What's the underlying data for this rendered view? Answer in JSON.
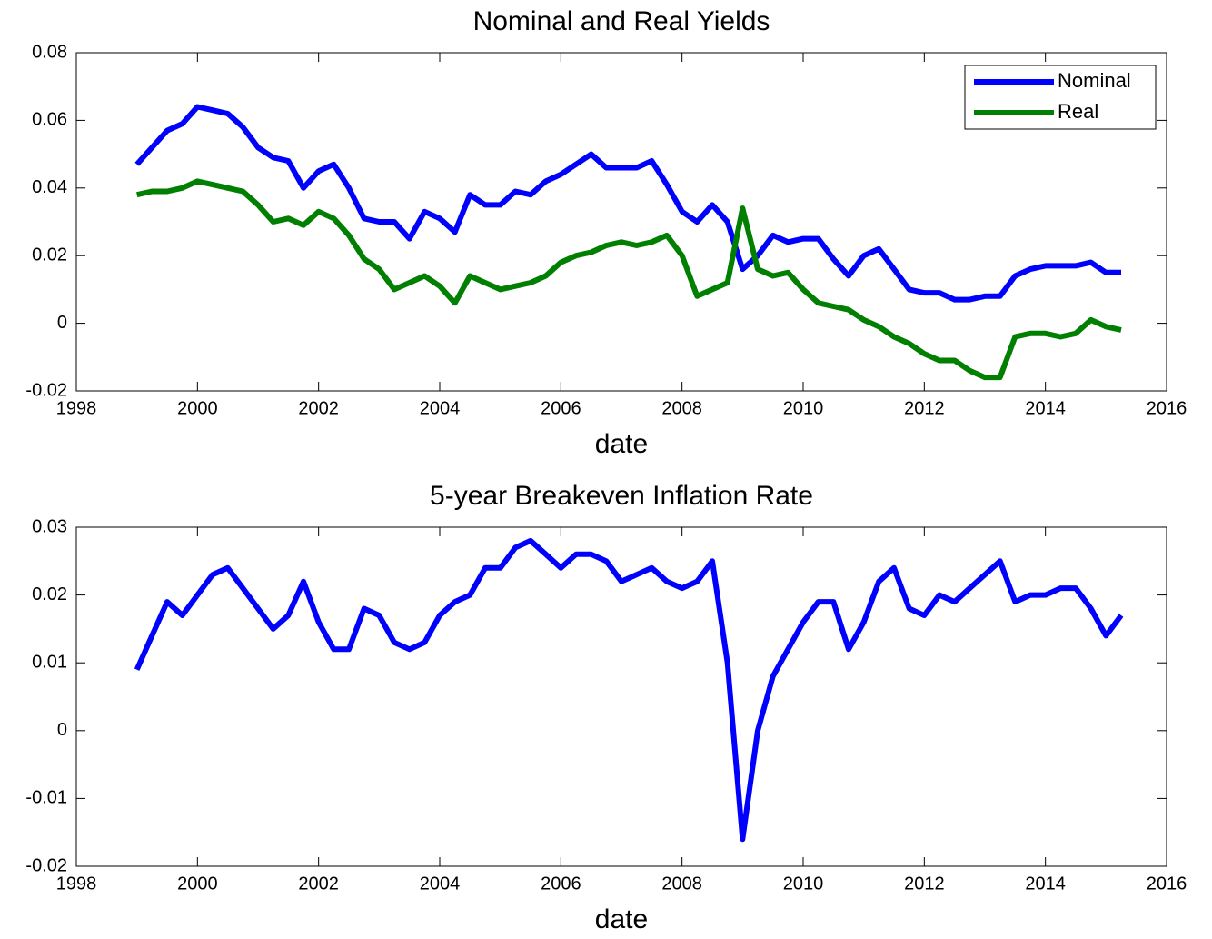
{
  "chart_data": [
    {
      "type": "line",
      "title": "Nominal and Real Yields",
      "xlabel": "date",
      "xlim": [
        1998,
        2016
      ],
      "xticks": [
        1998,
        2000,
        2002,
        2004,
        2006,
        2008,
        2010,
        2012,
        2014,
        2016
      ],
      "ylim": [
        -0.02,
        0.08
      ],
      "yticks": [
        -0.02,
        0,
        0.02,
        0.04,
        0.06,
        0.08
      ],
      "legend": "upper right",
      "x": [
        1999,
        1999.25,
        1999.5,
        1999.75,
        2000,
        2000.25,
        2000.5,
        2000.75,
        2001,
        2001.25,
        2001.5,
        2001.75,
        2002,
        2002.25,
        2002.5,
        2002.75,
        2003,
        2003.25,
        2003.5,
        2003.75,
        2004,
        2004.25,
        2004.5,
        2004.75,
        2005,
        2005.25,
        2005.5,
        2005.75,
        2006,
        2006.25,
        2006.5,
        2006.75,
        2007,
        2007.25,
        2007.5,
        2007.75,
        2008,
        2008.25,
        2008.5,
        2008.75,
        2009,
        2009.25,
        2009.5,
        2009.75,
        2010,
        2010.25,
        2010.5,
        2010.75,
        2011,
        2011.25,
        2011.5,
        2011.75,
        2012,
        2012.25,
        2012.5,
        2012.75,
        2013,
        2013.25,
        2013.5,
        2013.75,
        2014,
        2014.25,
        2014.5,
        2014.75,
        2015,
        2015.25
      ],
      "series": [
        {
          "name": "Nominal",
          "color": "#0000ff",
          "values": [
            0.047,
            0.052,
            0.057,
            0.059,
            0.064,
            0.063,
            0.062,
            0.058,
            0.052,
            0.049,
            0.048,
            0.04,
            0.045,
            0.047,
            0.04,
            0.031,
            0.03,
            0.03,
            0.025,
            0.033,
            0.031,
            0.027,
            0.038,
            0.035,
            0.035,
            0.039,
            0.038,
            0.042,
            0.044,
            0.047,
            0.05,
            0.046,
            0.046,
            0.046,
            0.048,
            0.041,
            0.033,
            0.03,
            0.035,
            0.03,
            0.016,
            0.02,
            0.026,
            0.024,
            0.025,
            0.025,
            0.019,
            0.014,
            0.02,
            0.022,
            0.016,
            0.01,
            0.009,
            0.009,
            0.007,
            0.007,
            0.008,
            0.008,
            0.014,
            0.016,
            0.017,
            0.017,
            0.017,
            0.018,
            0.015,
            0.015
          ]
        },
        {
          "name": "Real",
          "color": "#007f00",
          "values": [
            0.038,
            0.039,
            0.039,
            0.04,
            0.042,
            0.041,
            0.04,
            0.039,
            0.035,
            0.03,
            0.031,
            0.029,
            0.033,
            0.031,
            0.026,
            0.019,
            0.016,
            0.01,
            0.012,
            0.014,
            0.011,
            0.006,
            0.014,
            0.012,
            0.01,
            0.011,
            0.012,
            0.014,
            0.018,
            0.02,
            0.021,
            0.023,
            0.024,
            0.023,
            0.024,
            0.026,
            0.02,
            0.008,
            0.01,
            0.012,
            0.034,
            0.016,
            0.014,
            0.015,
            0.01,
            0.006,
            0.005,
            0.004,
            0.001,
            -0.001,
            -0.004,
            -0.006,
            -0.009,
            -0.011,
            -0.011,
            -0.014,
            -0.016,
            -0.016,
            -0.004,
            -0.003,
            -0.003,
            -0.004,
            -0.003,
            0.001,
            -0.001,
            -0.002
          ]
        }
      ]
    },
    {
      "type": "line",
      "title": "5-year Breakeven Inflation Rate",
      "xlabel": "date",
      "xlim": [
        1998,
        2016
      ],
      "xticks": [
        1998,
        2000,
        2002,
        2004,
        2006,
        2008,
        2010,
        2012,
        2014,
        2016
      ],
      "ylim": [
        -0.02,
        0.03
      ],
      "yticks": [
        -0.02,
        -0.01,
        0,
        0.01,
        0.02,
        0.03
      ],
      "x": [
        1999,
        1999.25,
        1999.5,
        1999.75,
        2000,
        2000.25,
        2000.5,
        2000.75,
        2001,
        2001.25,
        2001.5,
        2001.75,
        2002,
        2002.25,
        2002.5,
        2002.75,
        2003,
        2003.25,
        2003.5,
        2003.75,
        2004,
        2004.25,
        2004.5,
        2004.75,
        2005,
        2005.25,
        2005.5,
        2005.75,
        2006,
        2006.25,
        2006.5,
        2006.75,
        2007,
        2007.25,
        2007.5,
        2007.75,
        2008,
        2008.25,
        2008.5,
        2008.75,
        2009,
        2009.25,
        2009.5,
        2009.75,
        2010,
        2010.25,
        2010.5,
        2010.75,
        2011,
        2011.25,
        2011.5,
        2011.75,
        2012,
        2012.25,
        2012.5,
        2012.75,
        2013,
        2013.25,
        2013.5,
        2013.75,
        2014,
        2014.25,
        2014.5,
        2014.75,
        2015,
        2015.25
      ],
      "series": [
        {
          "color": "#0000ff",
          "values": [
            0.009,
            0.014,
            0.019,
            0.017,
            0.02,
            0.023,
            0.024,
            0.021,
            0.018,
            0.015,
            0.017,
            0.022,
            0.016,
            0.012,
            0.012,
            0.018,
            0.017,
            0.013,
            0.012,
            0.013,
            0.017,
            0.019,
            0.02,
            0.024,
            0.024,
            0.027,
            0.028,
            0.026,
            0.024,
            0.026,
            0.026,
            0.025,
            0.022,
            0.023,
            0.024,
            0.022,
            0.021,
            0.022,
            0.025,
            0.01,
            -0.016,
            0.0,
            0.008,
            0.012,
            0.016,
            0.019,
            0.019,
            0.012,
            0.016,
            0.022,
            0.024,
            0.018,
            0.017,
            0.02,
            0.019,
            0.021,
            0.023,
            0.025,
            0.019,
            0.02,
            0.02,
            0.021,
            0.021,
            0.018,
            0.014,
            0.017
          ]
        }
      ]
    }
  ]
}
